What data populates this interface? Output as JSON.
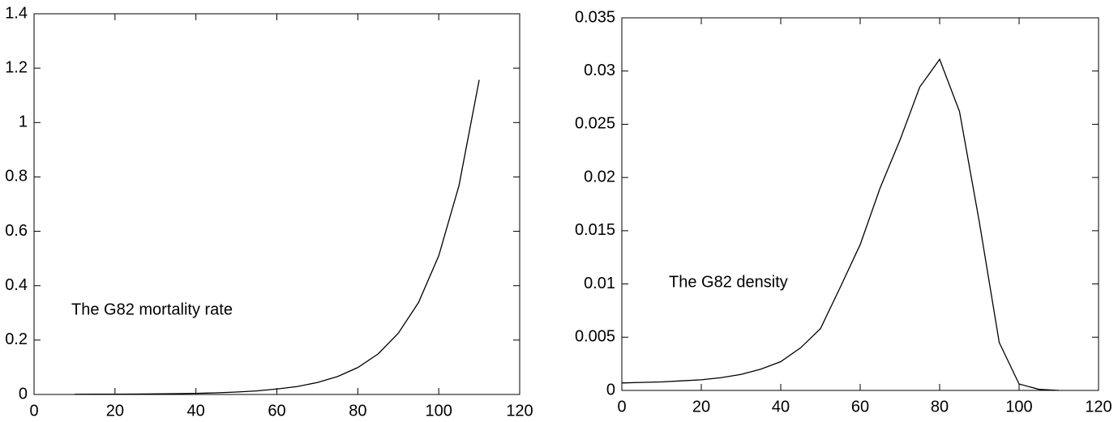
{
  "chart_data": [
    {
      "type": "line",
      "annotation": "The G82 mortality rate",
      "color": "#000000",
      "x": [
        10,
        15,
        20,
        25,
        30,
        35,
        40,
        45,
        50,
        55,
        60,
        65,
        70,
        75,
        80,
        85,
        90,
        95,
        100,
        105,
        110
      ],
      "values": [
        0.0008,
        0.001,
        0.0012,
        0.0016,
        0.002,
        0.003,
        0.004,
        0.006,
        0.009,
        0.013,
        0.02,
        0.029,
        0.044,
        0.066,
        0.099,
        0.149,
        0.225,
        0.338,
        0.51,
        0.768,
        1.157
      ],
      "xlim": [
        0,
        120
      ],
      "ylim": [
        0,
        1.4
      ],
      "xticks": [
        0,
        20,
        40,
        60,
        80,
        100,
        120
      ],
      "yticks": [
        0,
        0.2,
        0.4,
        0.6,
        0.8,
        1,
        1.2,
        1.4
      ]
    },
    {
      "type": "line",
      "annotation": "The G82 density",
      "color": "#000000",
      "x": [
        0,
        5,
        10,
        15,
        20,
        25,
        30,
        35,
        40,
        45,
        50,
        55,
        60,
        65,
        70,
        75,
        80,
        85,
        90,
        95,
        100,
        105,
        110
      ],
      "values": [
        0.0007,
        0.00075,
        0.0008,
        0.0009,
        0.001,
        0.0012,
        0.0015,
        0.002,
        0.0027,
        0.004,
        0.0058,
        0.0097,
        0.0137,
        0.019,
        0.0235,
        0.0285,
        0.0311,
        0.0262,
        0.0158,
        0.0045,
        0.0006,
        0.0001,
        0
      ],
      "xlim": [
        0,
        120
      ],
      "ylim": [
        0,
        0.035
      ],
      "xticks": [
        0,
        20,
        40,
        60,
        80,
        100,
        120
      ],
      "yticks": [
        0,
        0.005,
        0.01,
        0.015,
        0.02,
        0.025,
        0.03,
        0.035
      ]
    }
  ]
}
